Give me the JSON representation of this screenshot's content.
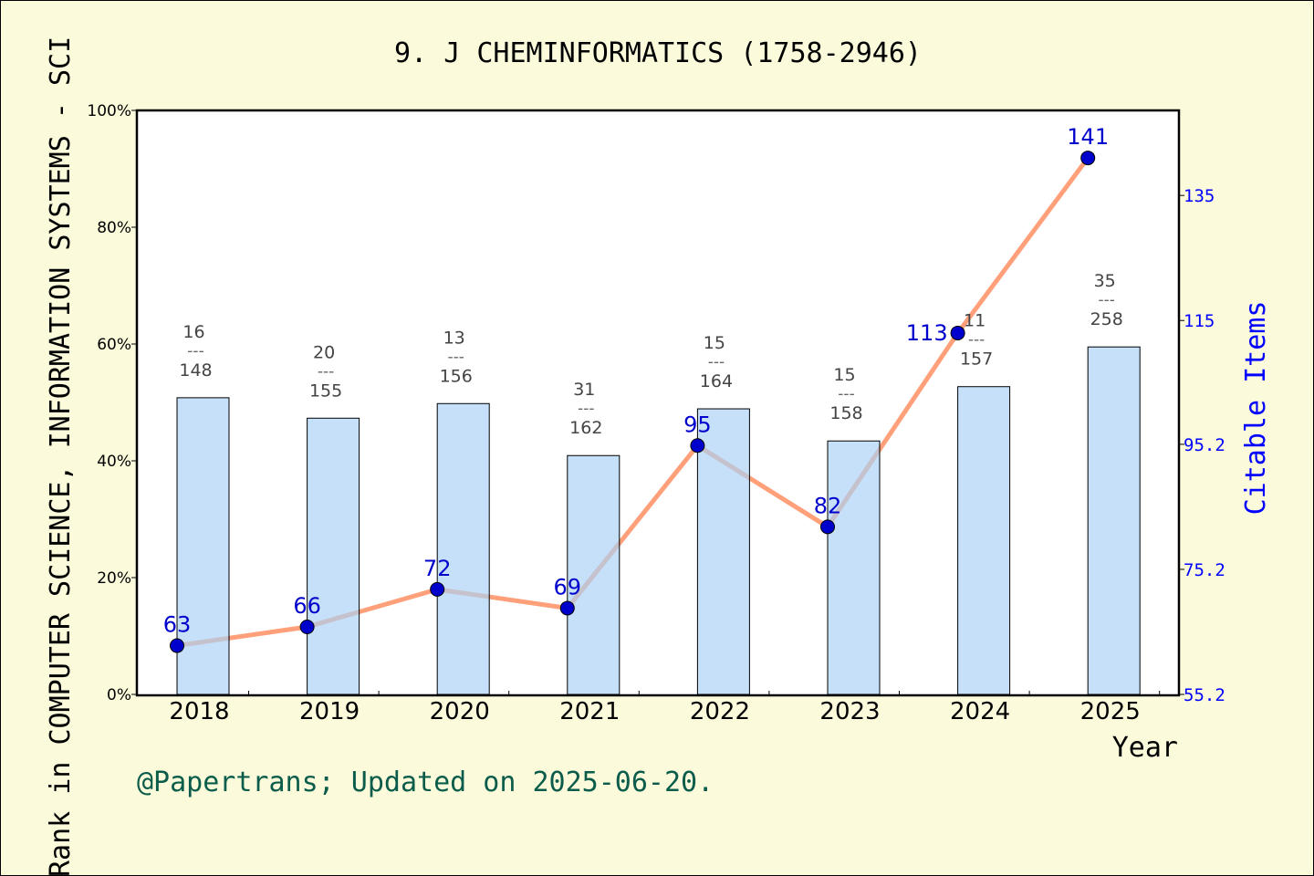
{
  "chart_data": {
    "type": "bar+line",
    "title": "9. J CHEMINFORMATICS (1758-2946)",
    "xlabel": "Year",
    "ylabel_left": "Rank in COMPUTER SCIENCE, INFORMATION SYSTEMS - SCI",
    "ylabel_right": "Citable Items",
    "categories": [
      "2018",
      "2019",
      "2020",
      "2021",
      "2022",
      "2023",
      "2024",
      "2025"
    ],
    "left_axis": {
      "ticks": [
        "0%",
        "20%",
        "40%",
        "60%",
        "80%",
        "100%"
      ],
      "range": [
        0,
        100
      ]
    },
    "right_axis": {
      "ticks": [
        "55.2",
        "75.2",
        "95.2",
        "115",
        "135"
      ],
      "range": [
        55.2,
        148.6
      ]
    },
    "bars": {
      "values": [
        50.8,
        47.3,
        49.8,
        40.9,
        48.9,
        43.4,
        52.7,
        59.5
      ],
      "rank": [
        "16",
        "20",
        "13",
        "31",
        "15",
        "15",
        "11",
        "35"
      ],
      "total": [
        "148",
        "155",
        "156",
        "162",
        "164",
        "158",
        "157",
        "258"
      ],
      "separator": "---",
      "color": "#c5e0f7"
    },
    "line": {
      "values": [
        63,
        66,
        72,
        69,
        95,
        82,
        113,
        141
      ],
      "labels": [
        "63",
        "66",
        "72",
        "69",
        "95",
        "82",
        "113",
        "141"
      ],
      "color": "#ffa07a",
      "marker_color": "#0000cd"
    },
    "grid": false
  },
  "footer": "@Papertrans; Updated on 2025-06-20."
}
